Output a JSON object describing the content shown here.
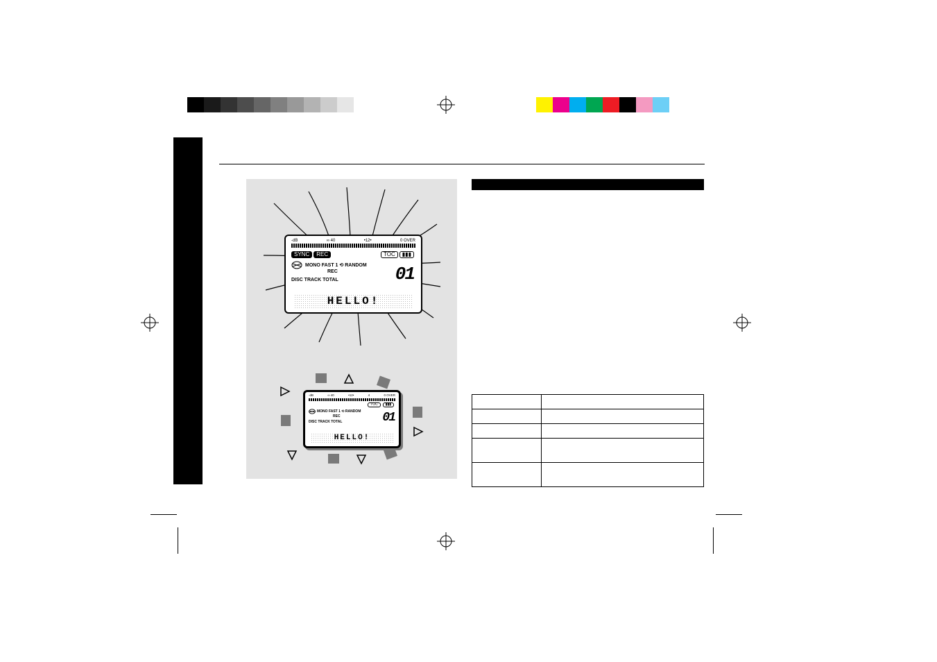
{
  "calibration": {
    "greyscale_steps": [
      "#000000",
      "#1a1a1a",
      "#333333",
      "#4d4d4d",
      "#666666",
      "#808080",
      "#999999",
      "#b3b3b3",
      "#cccccc",
      "#e6e6e6",
      "#ffffff"
    ],
    "color_steps": [
      "#fff200",
      "#ec008c",
      "#00aeef",
      "#00a651",
      "#ed1c24",
      "#000000",
      "#f49ac1",
      "#6dcff6"
    ]
  },
  "lcd": {
    "meter_label_left": "∞ 40",
    "meter_label_mid": "•12•",
    "meter_label_right_small": "4",
    "meter_label_right": "0 OVER",
    "meter_prefix": "-dB",
    "sync_pill": "SYNC",
    "rec_pill": "REC",
    "toc_pill": "TOC",
    "batt_pill": "▮▮▮",
    "mode_line": "MONO FAST 1 ⟲ RANDOM",
    "rec_text": "REC",
    "counter_line": "DISC TRACK TOTAL",
    "track_number": "01",
    "dot_text": "HELLO!",
    "dot_text_small": "HELLO!"
  },
  "figure_bg": "#e3e3e3",
  "arrows": {
    "solid_color": "#7a7a7a",
    "outline_stroke": "#000000"
  }
}
